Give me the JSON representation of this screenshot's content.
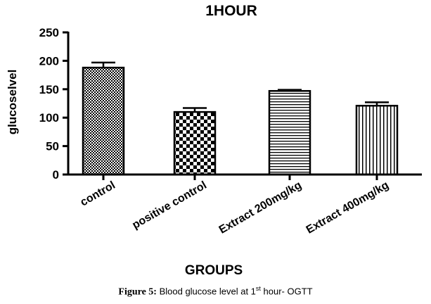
{
  "chart_data": {
    "type": "bar",
    "title": "1HOUR",
    "xlabel": "GROUPS",
    "ylabel": "glucoselvel",
    "categories": [
      "control",
      "positive control",
      "Extract 200mg/kg",
      "Extract 400mg/kg"
    ],
    "values": [
      188,
      110,
      147,
      121
    ],
    "errors": [
      9,
      7,
      2,
      6
    ],
    "ylim": [
      0,
      250
    ],
    "yticks": [
      0,
      50,
      100,
      150,
      200,
      250
    ],
    "patterns": [
      "checker-fine",
      "checker-coarse",
      "horizontal-lines",
      "vertical-lines"
    ]
  },
  "caption": {
    "figure_label": "Figure 5:",
    "text_before": " Blood glucose level at 1",
    "superscript": "st",
    "text_after": " hour- OGTT"
  }
}
